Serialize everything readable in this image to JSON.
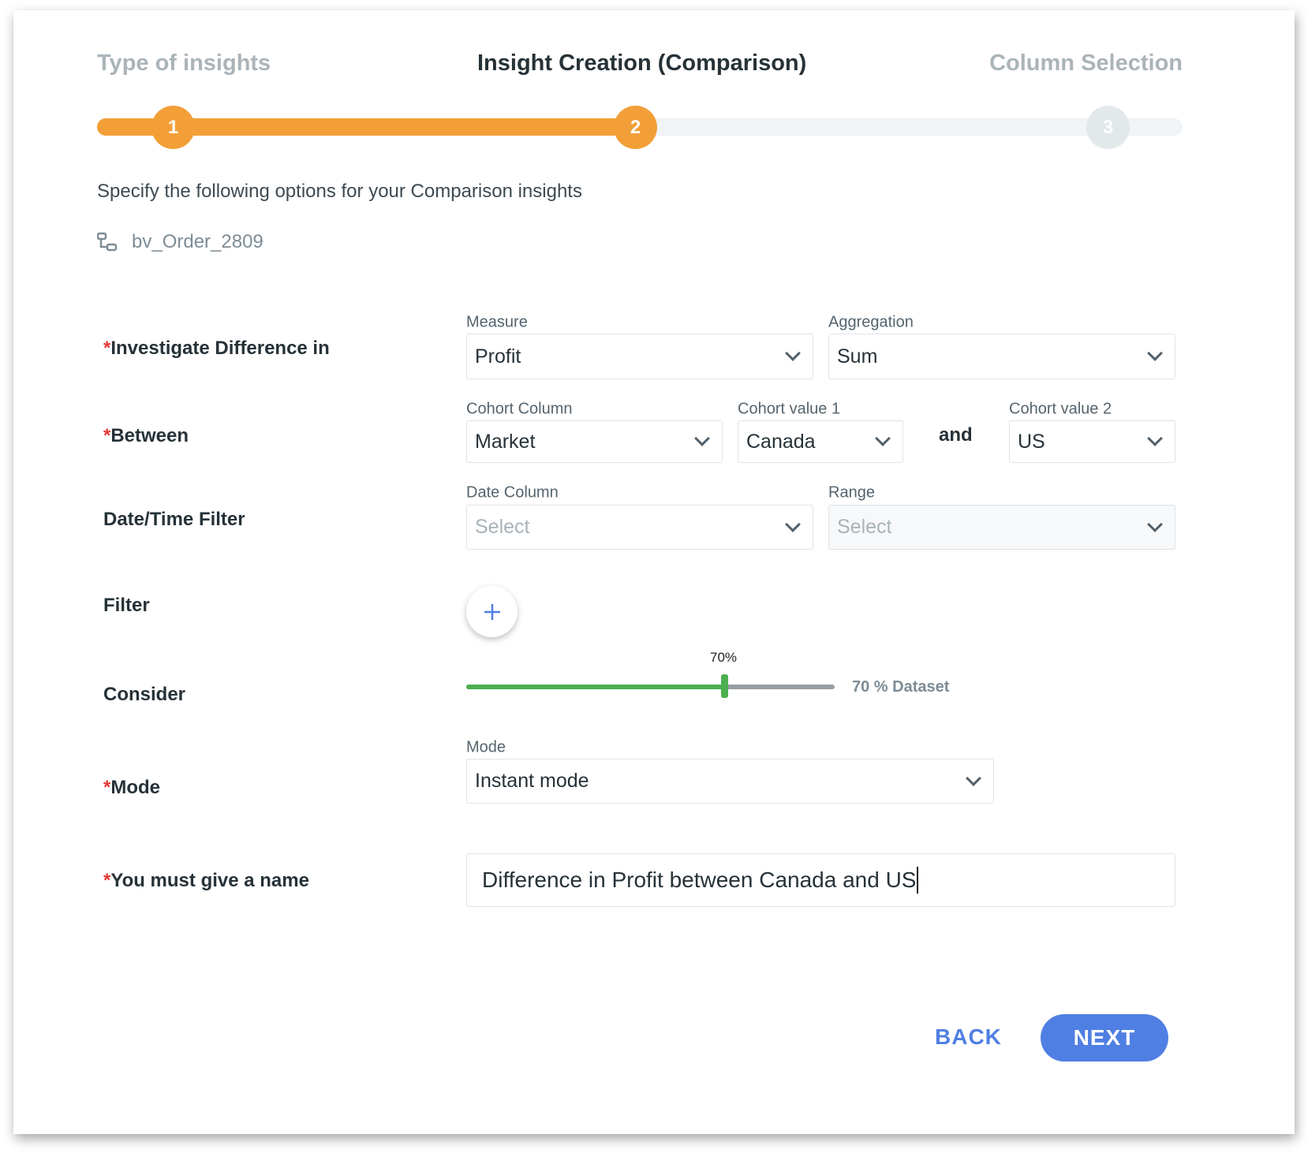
{
  "steps": [
    {
      "number": "1",
      "label": "Type of insights",
      "state": "done"
    },
    {
      "number": "2",
      "label": "Insight Creation (Comparison)",
      "state": "active"
    },
    {
      "number": "3",
      "label": "Column Selection",
      "state": "pending"
    }
  ],
  "colors": {
    "accent": "#f29f38",
    "track": "#f0f4f7",
    "slider": "#4caf50",
    "primary": "#4f7fe3"
  },
  "subtitle": "Specify the following options for your Comparison insights",
  "dataset": {
    "icon": "dataset-icon",
    "name": "bv_Order_2809"
  },
  "required_mark": "*",
  "rows": {
    "investigate": {
      "label": "Investigate Difference in",
      "measure_label": "Measure",
      "measure": "Profit",
      "aggregation_label": "Aggregation",
      "aggregation": "Sum"
    },
    "between": {
      "label": "Between",
      "cohort_column_label": "Cohort Column",
      "cohort_column": "Market",
      "cohort1_label": "Cohort value 1",
      "cohort1": "Canada",
      "and": "and",
      "cohort2_label": "Cohort value 2",
      "cohort2": "US"
    },
    "date": {
      "label": "Date/Time Filter",
      "date_column_label": "Date Column",
      "date_column_placeholder": "Select",
      "range_label": "Range",
      "range_placeholder": "Select"
    },
    "filter": {
      "label": "Filter",
      "add_icon": "plus-icon"
    },
    "consider": {
      "label": "Consider",
      "value_percent": 70,
      "tooltip": "70%",
      "caption": "70 % Dataset"
    },
    "mode": {
      "label": "Mode",
      "field_label": "Mode",
      "value": "Instant mode"
    },
    "name": {
      "label": "You must give a name",
      "value": "Difference in Profit between Canada and US"
    }
  },
  "buttons": {
    "back": "BACK",
    "next": "NEXT"
  }
}
